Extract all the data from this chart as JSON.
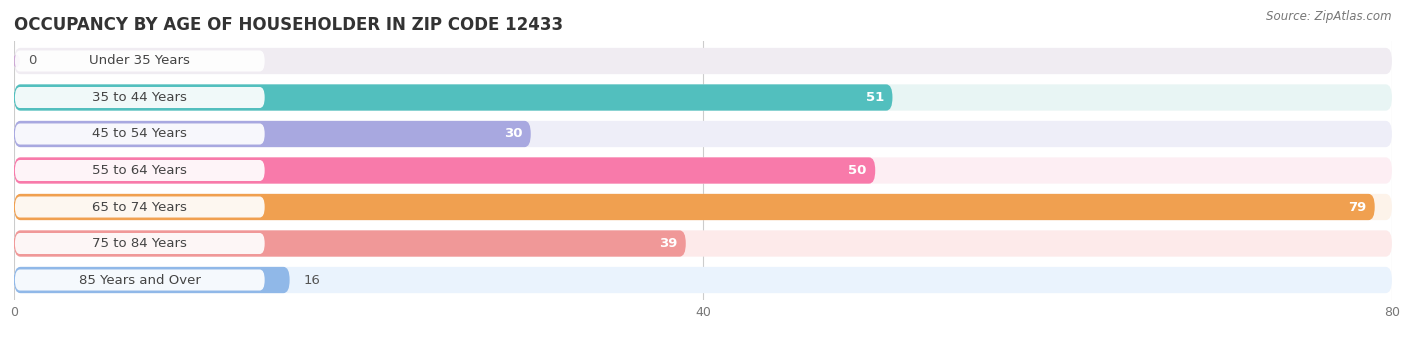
{
  "title": "OCCUPANCY BY AGE OF HOUSEHOLDER IN ZIP CODE 12433",
  "source": "Source: ZipAtlas.com",
  "categories": [
    "Under 35 Years",
    "35 to 44 Years",
    "45 to 54 Years",
    "55 to 64 Years",
    "65 to 74 Years",
    "75 to 84 Years",
    "85 Years and Over"
  ],
  "values": [
    0,
    51,
    30,
    50,
    79,
    39,
    16
  ],
  "bar_colors": [
    "#cca8d4",
    "#52bfbe",
    "#a8a8e0",
    "#f87aaa",
    "#f0a050",
    "#f09898",
    "#90b8e8"
  ],
  "bar_bg_colors": [
    "#f0ecf2",
    "#e8f5f4",
    "#eeeef8",
    "#fdeef3",
    "#fdf3ea",
    "#fdeaea",
    "#eaf3fd"
  ],
  "xlim": [
    0,
    80
  ],
  "xticks": [
    0,
    40,
    80
  ],
  "background_color": "#ffffff",
  "title_fontsize": 12,
  "bar_height": 0.72,
  "label_fontsize": 9.5,
  "value_fontsize": 9.5
}
